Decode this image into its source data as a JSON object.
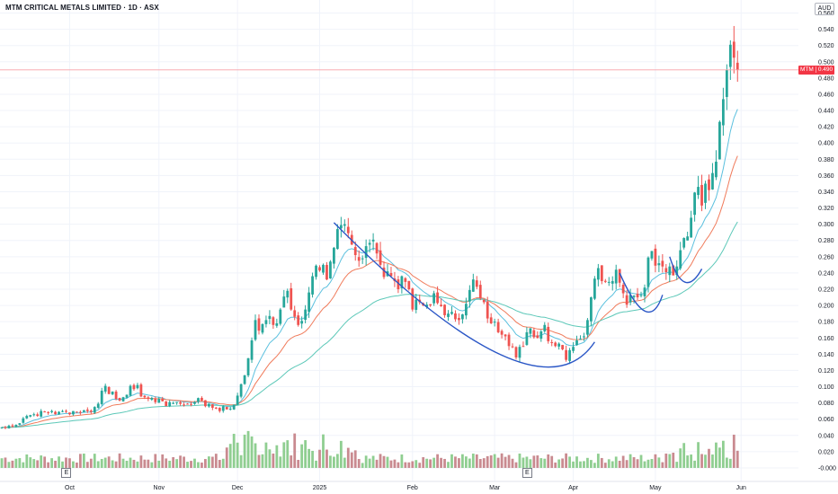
{
  "header": {
    "title": "MTM CRITICAL METALS LIMITED · 1D · ASX",
    "currency": "AUD"
  },
  "last_price": {
    "symbol": "MTM",
    "value": "0.490"
  },
  "earnings_markers": [
    "E",
    "E"
  ],
  "colors": {
    "up": "#26a69a",
    "down": "#ef5350",
    "vol_up": "#8fce91",
    "vol_down": "#c98a90",
    "ema_fast": "#5bc0de",
    "ema_mid": "#f07b5b",
    "ema_slow": "#5cc8b8",
    "cup": "#2a56c6",
    "price_line": "#f7a1a8",
    "grid": "#f0f3fa",
    "axis_text": "#131722"
  },
  "chart_data": {
    "type": "candlestick",
    "title": "MTM CRITICAL METALS LIMITED · 1D · ASX",
    "y_axis": {
      "range": [
        -0.01,
        0.565
      ],
      "ticks": [
        "-0.000",
        "0.020",
        "0.040",
        "0.060",
        "0.080",
        "0.100",
        "0.120",
        "0.140",
        "0.160",
        "0.180",
        "0.200",
        "0.220",
        "0.240",
        "0.260",
        "0.280",
        "0.300",
        "0.320",
        "0.340",
        "0.360",
        "0.380",
        "0.400",
        "0.420",
        "0.440",
        "0.460",
        "0.480",
        "0.500",
        "0.520",
        "0.540",
        "0.560"
      ]
    },
    "x_axis": {
      "range": [
        0,
        215
      ],
      "labels": [
        {
          "i": 19,
          "text": "Oct"
        },
        {
          "i": 44,
          "text": "Nov"
        },
        {
          "i": 66,
          "text": "Dec"
        },
        {
          "i": 89,
          "text": "2025"
        },
        {
          "i": 115,
          "text": "Feb"
        },
        {
          "i": 138,
          "text": "Mar"
        },
        {
          "i": 160,
          "text": "Apr"
        },
        {
          "i": 183,
          "text": "May"
        },
        {
          "i": 207,
          "text": "Jun"
        }
      ]
    },
    "volume_scale_max": 0.052,
    "candles_close": [
      0.05,
      0.049,
      0.052,
      0.051,
      0.053,
      0.055,
      0.061,
      0.064,
      0.065,
      0.066,
      0.064,
      0.07,
      0.069,
      0.068,
      0.07,
      0.066,
      0.069,
      0.07,
      0.069,
      0.066,
      0.07,
      0.069,
      0.068,
      0.071,
      0.07,
      0.069,
      0.075,
      0.079,
      0.095,
      0.101,
      0.091,
      0.094,
      0.085,
      0.083,
      0.087,
      0.09,
      0.101,
      0.097,
      0.102,
      0.088,
      0.087,
      0.085,
      0.086,
      0.081,
      0.085,
      0.082,
      0.076,
      0.081,
      0.08,
      0.081,
      0.079,
      0.078,
      0.079,
      0.078,
      0.081,
      0.086,
      0.083,
      0.076,
      0.079,
      0.074,
      0.073,
      0.07,
      0.076,
      0.072,
      0.073,
      0.078,
      0.089,
      0.103,
      0.114,
      0.135,
      0.157,
      0.182,
      0.169,
      0.177,
      0.182,
      0.187,
      0.176,
      0.178,
      0.195,
      0.211,
      0.218,
      0.195,
      0.186,
      0.176,
      0.181,
      0.195,
      0.216,
      0.236,
      0.249,
      0.243,
      0.25,
      0.232,
      0.254,
      0.271,
      0.294,
      0.299,
      0.3,
      0.289,
      0.275,
      0.262,
      0.255,
      0.258,
      0.273,
      0.277,
      0.281,
      0.264,
      0.25,
      0.235,
      0.242,
      0.236,
      0.23,
      0.22,
      0.236,
      0.229,
      0.22,
      0.195,
      0.207,
      0.204,
      0.2,
      0.201,
      0.2,
      0.215,
      0.203,
      0.199,
      0.188,
      0.19,
      0.192,
      0.183,
      0.182,
      0.189,
      0.202,
      0.219,
      0.232,
      0.223,
      0.209,
      0.204,
      0.184,
      0.178,
      0.18,
      0.167,
      0.164,
      0.162,
      0.15,
      0.149,
      0.136,
      0.149,
      0.15,
      0.167,
      0.172,
      0.161,
      0.16,
      0.168,
      0.176,
      0.156,
      0.154,
      0.15,
      0.153,
      0.146,
      0.133,
      0.145,
      0.149,
      0.157,
      0.159,
      0.162,
      0.182,
      0.21,
      0.233,
      0.246,
      0.23,
      0.229,
      0.229,
      0.23,
      0.244,
      0.228,
      0.215,
      0.201,
      0.213,
      0.212,
      0.21,
      0.213,
      0.222,
      0.259,
      0.267,
      0.249,
      0.252,
      0.248,
      0.241,
      0.248,
      0.237,
      0.248,
      0.268,
      0.283,
      0.285,
      0.308,
      0.339,
      0.346,
      0.323,
      0.35,
      0.342,
      0.363,
      0.377,
      0.426,
      0.454,
      0.49,
      0.521,
      0.505,
      0.49
    ],
    "candles_note": "daily OHLC; close values listed",
    "series": [
      {
        "name": "",
        "type": "ema",
        "period": 10
      },
      {
        "name": "",
        "type": "ema",
        "period": 20
      },
      {
        "name": "",
        "type": "ema",
        "period": 50
      }
    ],
    "annotations": [
      "cup-and-handle curve"
    ],
    "grid": true,
    "legend": "none"
  }
}
